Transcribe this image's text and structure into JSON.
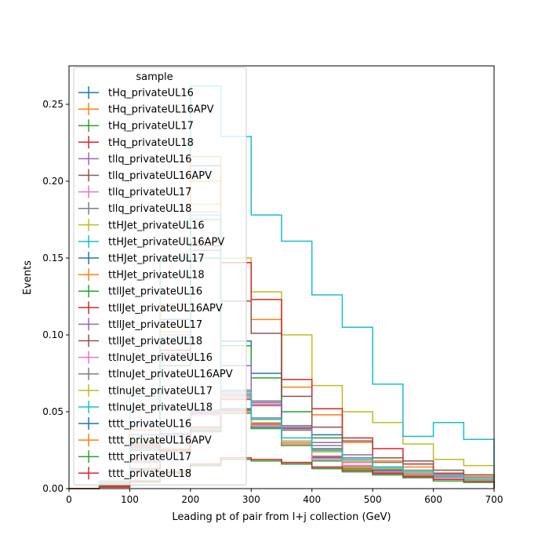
{
  "chart_data": {
    "type": "step",
    "title": "",
    "xlabel": "Leading pt of pair from l+j collection (GeV)",
    "ylabel": "Events",
    "xlim": [
      0,
      700
    ],
    "ylim": [
      0,
      0.275
    ],
    "x_ticks": [
      "0",
      "100",
      "200",
      "300",
      "400",
      "500",
      "600",
      "700"
    ],
    "y_ticks": [
      "0.00",
      "0.05",
      "0.10",
      "0.15",
      "0.20",
      "0.25"
    ],
    "grid": false,
    "legend": {
      "title": "sample",
      "placement": "top-left"
    },
    "bin_edges": [
      0,
      50,
      100,
      150,
      200,
      250,
      300,
      350,
      400,
      450,
      500,
      550,
      600,
      650,
      700
    ],
    "series": [
      {
        "name": "tHq_privateUL16",
        "color": "#1f77b4",
        "values": [
          0,
          0.002,
          0.012,
          0.025,
          0.038,
          0.052,
          0.04,
          0.03,
          0.02,
          0.014,
          0.01,
          0.008,
          0.006,
          0.005
        ]
      },
      {
        "name": "tHq_privateUL16APV",
        "color": "#ff7f0e",
        "values": [
          0,
          0.002,
          0.013,
          0.026,
          0.039,
          0.05,
          0.041,
          0.029,
          0.019,
          0.014,
          0.01,
          0.007,
          0.006,
          0.005
        ]
      },
      {
        "name": "tHq_privateUL17",
        "color": "#2ca02c",
        "values": [
          0,
          0.002,
          0.012,
          0.024,
          0.037,
          0.049,
          0.039,
          0.028,
          0.018,
          0.013,
          0.009,
          0.007,
          0.006,
          0.004
        ]
      },
      {
        "name": "tHq_privateUL18",
        "color": "#d62728",
        "values": [
          0,
          0.002,
          0.013,
          0.025,
          0.04,
          0.051,
          0.042,
          0.031,
          0.021,
          0.015,
          0.011,
          0.008,
          0.006,
          0.005
        ]
      },
      {
        "name": "tllq_privateUL16",
        "color": "#9467bd",
        "values": [
          0,
          0.003,
          0.018,
          0.035,
          0.05,
          0.06,
          0.056,
          0.04,
          0.026,
          0.018,
          0.012,
          0.009,
          0.007,
          0.005
        ]
      },
      {
        "name": "tllq_privateUL16APV",
        "color": "#8c564b",
        "values": [
          0,
          0.003,
          0.017,
          0.034,
          0.049,
          0.058,
          0.054,
          0.039,
          0.025,
          0.017,
          0.012,
          0.009,
          0.007,
          0.005
        ]
      },
      {
        "name": "tllq_privateUL17",
        "color": "#e377c2",
        "values": [
          0,
          0.003,
          0.017,
          0.034,
          0.048,
          0.059,
          0.055,
          0.038,
          0.024,
          0.017,
          0.011,
          0.008,
          0.006,
          0.005
        ]
      },
      {
        "name": "tllq_privateUL18",
        "color": "#7f7f7f",
        "values": [
          0,
          0.003,
          0.018,
          0.036,
          0.051,
          0.061,
          0.057,
          0.041,
          0.026,
          0.018,
          0.012,
          0.009,
          0.007,
          0.005
        ]
      },
      {
        "name": "ttHJet_privateUL16",
        "color": "#bcbd22",
        "values": [
          0,
          0.004,
          0.032,
          0.105,
          0.2,
          0.15,
          0.128,
          0.1,
          0.067,
          0.05,
          0.043,
          0.029,
          0.019,
          0.015
        ]
      },
      {
        "name": "ttHJet_privateUL16APV",
        "color": "#17becf",
        "values": [
          0,
          0.005,
          0.06,
          0.15,
          0.262,
          0.229,
          0.178,
          0.161,
          0.126,
          0.105,
          0.068,
          0.034,
          0.043,
          0.032
        ]
      },
      {
        "name": "ttHJet_privateUL17",
        "color": "#1f77b4",
        "values": [
          0,
          0.004,
          0.035,
          0.11,
          0.21,
          0.096,
          0.075,
          0.031,
          0.035,
          0.018,
          0.012,
          0.01,
          0.009,
          0.007
        ]
      },
      {
        "name": "ttHJet_privateUL18",
        "color": "#ff7f0e",
        "values": [
          0,
          0.004,
          0.038,
          0.12,
          0.216,
          0.147,
          0.11,
          0.066,
          0.048,
          0.03,
          0.018,
          0.014,
          0.01,
          0.008
        ]
      },
      {
        "name": "ttllJet_privateUL16",
        "color": "#2ca02c",
        "values": [
          0,
          0.003,
          0.025,
          0.08,
          0.15,
          0.093,
          0.072,
          0.05,
          0.033,
          0.02,
          0.014,
          0.01,
          0.008,
          0.006
        ]
      },
      {
        "name": "ttllJet_privateUL16APV",
        "color": "#d62728",
        "values": [
          0,
          0.003,
          0.028,
          0.09,
          0.16,
          0.147,
          0.123,
          0.071,
          0.052,
          0.033,
          0.026,
          0.016,
          0.01,
          0.007
        ]
      },
      {
        "name": "ttllJet_privateUL17",
        "color": "#9467bd",
        "values": [
          0,
          0.003,
          0.026,
          0.085,
          0.155,
          0.08,
          0.056,
          0.04,
          0.03,
          0.02,
          0.013,
          0.01,
          0.008,
          0.006
        ]
      },
      {
        "name": "ttllJet_privateUL18",
        "color": "#8c564b",
        "values": [
          0,
          0.003,
          0.027,
          0.088,
          0.158,
          0.122,
          0.101,
          0.06,
          0.04,
          0.031,
          0.02,
          0.018,
          0.012,
          0.009
        ]
      },
      {
        "name": "ttlnuJet_privateUL16",
        "color": "#e377c2",
        "values": [
          0,
          0.003,
          0.03,
          0.1,
          0.18,
          0.062,
          0.041,
          0.03,
          0.019,
          0.015,
          0.011,
          0.009,
          0.007,
          0.005
        ]
      },
      {
        "name": "ttlnuJet_privateUL16APV",
        "color": "#7f7f7f",
        "values": [
          0,
          0.003,
          0.029,
          0.095,
          0.175,
          0.064,
          0.046,
          0.038,
          0.028,
          0.022,
          0.017,
          0.012,
          0.009,
          0.007
        ]
      },
      {
        "name": "ttlnuJet_privateUL17",
        "color": "#bcbd22",
        "values": [
          0,
          0.003,
          0.031,
          0.102,
          0.185,
          0.06,
          0.043,
          0.031,
          0.024,
          0.018,
          0.013,
          0.01,
          0.008,
          0.006
        ]
      },
      {
        "name": "ttlnuJet_privateUL18",
        "color": "#17becf",
        "values": [
          0,
          0.003,
          0.03,
          0.098,
          0.178,
          0.063,
          0.045,
          0.033,
          0.025,
          0.019,
          0.014,
          0.011,
          0.008,
          0.006
        ]
      },
      {
        "name": "tttt_privateUL16",
        "color": "#1f77b4",
        "values": [
          0,
          0.001,
          0.005,
          0.01,
          0.015,
          0.019,
          0.018,
          0.016,
          0.013,
          0.011,
          0.009,
          0.007,
          0.005,
          0.004
        ]
      },
      {
        "name": "tttt_privateUL16APV",
        "color": "#ff7f0e",
        "values": [
          0,
          0.001,
          0.005,
          0.01,
          0.016,
          0.02,
          0.019,
          0.017,
          0.014,
          0.012,
          0.01,
          0.008,
          0.006,
          0.004
        ]
      },
      {
        "name": "tttt_privateUL17",
        "color": "#2ca02c",
        "values": [
          0,
          0.001,
          0.004,
          0.01,
          0.015,
          0.019,
          0.018,
          0.016,
          0.013,
          0.011,
          0.009,
          0.007,
          0.005,
          0.004
        ]
      },
      {
        "name": "tttt_privateUL18",
        "color": "#d62728",
        "values": [
          0,
          0.001,
          0.005,
          0.011,
          0.016,
          0.02,
          0.019,
          0.017,
          0.014,
          0.012,
          0.01,
          0.008,
          0.006,
          0.005
        ]
      }
    ]
  }
}
